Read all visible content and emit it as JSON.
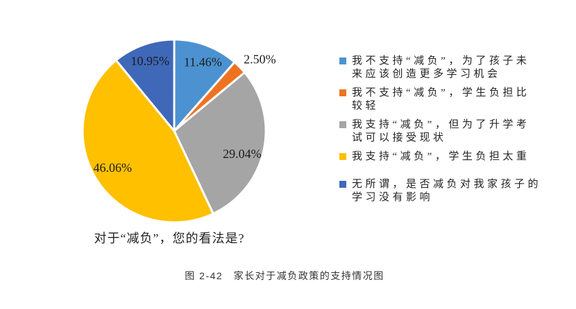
{
  "chart_data": {
    "type": "pie",
    "title": "对于“减负”，您的看法是?",
    "start_angle": "top",
    "direction": "clockwise",
    "legend_position": "right",
    "slices": [
      {
        "label": "我不支持“减负”，为了孩子未来应该创造更多学习机会",
        "value": 11.46,
        "display": "11.46%",
        "color": "#4C92D0"
      },
      {
        "label": "我不支持“减负”，学生负担比较轻",
        "value": 2.5,
        "display": "2.50%",
        "color": "#ED7320"
      },
      {
        "label": "我支持“减负”，但为了升学考试可以接受现状",
        "value": 29.04,
        "display": "29.04%",
        "color": "#A5A5A5"
      },
      {
        "label": "我支持“减负”，学生负担太重",
        "value": 46.06,
        "display": "46.06%",
        "color": "#FFC000"
      },
      {
        "label": "无所谓，是否减负对我家孩子的学习没有影响",
        "value": 10.95,
        "display": "10.95%",
        "color": "#3F68B8"
      }
    ]
  },
  "legend": {
    "items": [
      {
        "text": "我不支持“减负”，为了孩子未\n来应该创造更多学习机会"
      },
      {
        "text": "我不支持“减负”，学生负担比\n较轻"
      },
      {
        "text": "我支持“减负”，但为了升学考\n试可以接受现状"
      },
      {
        "text": "我支持“减负”，学生负担太重"
      },
      {
        "text": "无所谓，是否减负对我家孩子的\n学习没有影响"
      }
    ]
  },
  "caption": "图 2-42　家长对于减负政策的支持情况图"
}
